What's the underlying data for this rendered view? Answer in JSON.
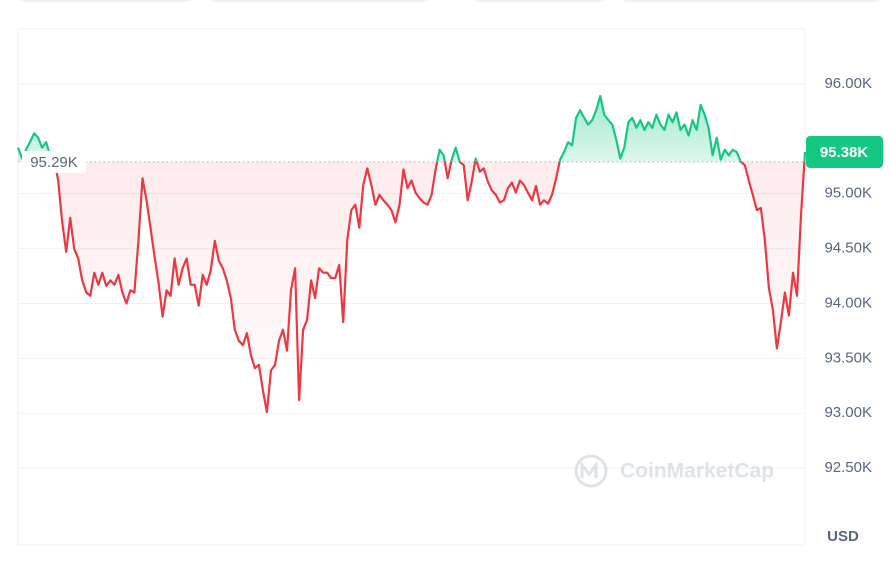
{
  "chart_data": {
    "type": "line",
    "currency": "USD",
    "watermark": "CoinMarketCap",
    "baseline": {
      "value": 95290,
      "label": "95.29K"
    },
    "current_price": {
      "value": 95380,
      "label": "95.38K"
    },
    "up_color": "#16c784",
    "down_color": "#ea3943",
    "ylim": [
      91800,
      96500
    ],
    "yticks": [
      {
        "value": 92500,
        "label": "92.50K"
      },
      {
        "value": 93000,
        "label": "93.00K"
      },
      {
        "value": 93500,
        "label": "93.50K"
      },
      {
        "value": 94000,
        "label": "94.00K"
      },
      {
        "value": 94500,
        "label": "94.50K"
      },
      {
        "value": 95000,
        "label": "95.00K"
      },
      {
        "value": 96000,
        "label": "96.00K"
      }
    ],
    "grid": true,
    "values": [
      95420,
      95320,
      95400,
      95470,
      95550,
      95510,
      95420,
      95470,
      95350,
      95310,
      95120,
      94740,
      94470,
      94780,
      94500,
      94410,
      94210,
      94100,
      94070,
      94280,
      94170,
      94280,
      94160,
      94210,
      94170,
      94260,
      94100,
      94000,
      94120,
      94100,
      94580,
      95140,
      94940,
      94690,
      94430,
      94190,
      93880,
      94120,
      94070,
      94410,
      94170,
      94320,
      94410,
      94170,
      94170,
      93980,
      94260,
      94170,
      94300,
      94570,
      94390,
      94320,
      94210,
      94050,
      93760,
      93660,
      93620,
      93730,
      93530,
      93410,
      93440,
      93210,
      93010,
      93390,
      93440,
      93660,
      93760,
      93570,
      94120,
      94320,
      93120,
      93760,
      93850,
      94210,
      94050,
      94320,
      94280,
      94280,
      94230,
      94230,
      94350,
      93830,
      94580,
      94850,
      94900,
      94690,
      95080,
      95230,
      95080,
      94900,
      94990,
      94940,
      94900,
      94850,
      94740,
      94900,
      95220,
      95050,
      95120,
      95010,
      94960,
      94920,
      94900,
      94990,
      95220,
      95400,
      95350,
      95140,
      95310,
      95420,
      95290,
      95260,
      94940,
      95110,
      95320,
      95200,
      95230,
      95110,
      95030,
      94990,
      94920,
      94940,
      95050,
      95100,
      95010,
      95120,
      95080,
      95010,
      94940,
      95070,
      94900,
      94940,
      94910,
      94990,
      95140,
      95310,
      95380,
      95470,
      95440,
      95690,
      95760,
      95690,
      95630,
      95670,
      95760,
      95890,
      95720,
      95670,
      95630,
      95490,
      95320,
      95420,
      95650,
      95690,
      95600,
      95670,
      95580,
      95650,
      95600,
      95720,
      95630,
      95580,
      95720,
      95650,
      95740,
      95580,
      95630,
      95530,
      95670,
      95580,
      95810,
      95720,
      95600,
      95350,
      95510,
      95310,
      95400,
      95350,
      95400,
      95380,
      95290,
      95260,
      95120,
      94990,
      94850,
      94870,
      94580,
      94140,
      93940,
      93590,
      93830,
      94100,
      93890,
      94280,
      94070,
      94800,
      95380
    ]
  }
}
